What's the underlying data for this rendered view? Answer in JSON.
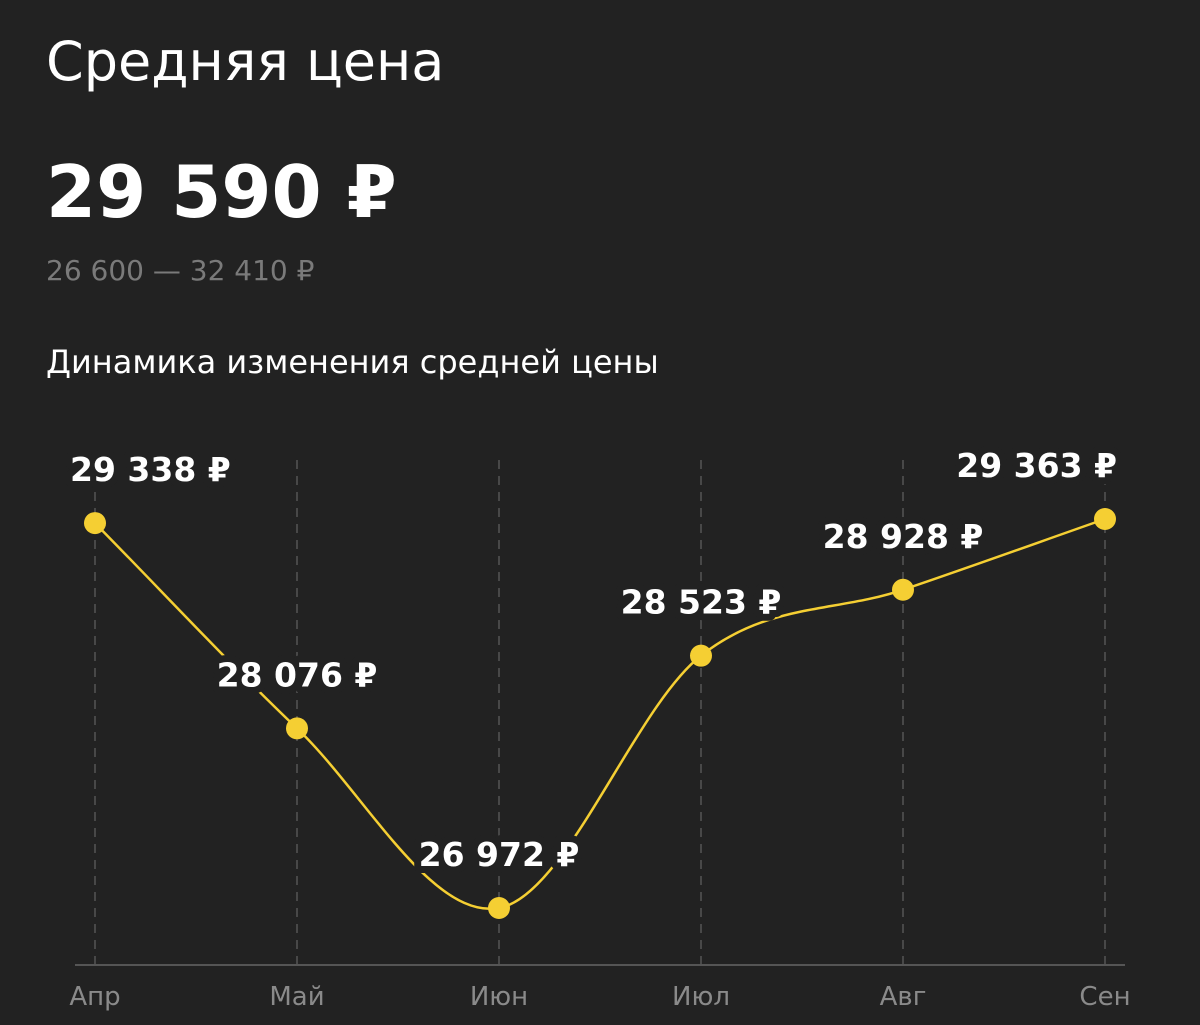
{
  "header": {
    "title": "Средняя цена",
    "price": "29 590 ₽",
    "range": "26 600 — 32 410 ₽"
  },
  "chart_data": {
    "type": "line",
    "title": "Динамика изменения средней цены",
    "categories": [
      "Апр",
      "Май",
      "Июн",
      "Июл",
      "Авг",
      "Сен"
    ],
    "series": [
      {
        "name": "Средняя цена",
        "color": "#f5cf33",
        "values": [
          29338,
          28076,
          26972,
          28523,
          28928,
          29363
        ],
        "value_labels": [
          "29 338 ₽",
          "28 076 ₽",
          "26 972 ₽",
          "28 523 ₽",
          "28 928 ₽",
          "29 363 ₽"
        ]
      }
    ],
    "grid": true
  }
}
